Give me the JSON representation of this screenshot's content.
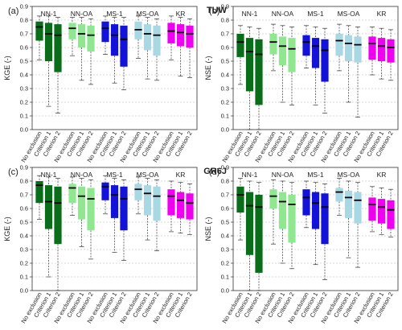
{
  "figure": {
    "models": [
      "TUW",
      "GR6J"
    ],
    "groups": [
      "NN-1",
      "NN-OA",
      "MS-1",
      "MS-OA",
      "KR"
    ],
    "criteria": [
      "No exclusion",
      "Criterion 1",
      "Criterion 2"
    ],
    "colors": {
      "NN-1": "#0a6d1a",
      "NN-OA": "#8fe88f",
      "MS-1": "#1212d8",
      "MS-OA": "#a8d8e4",
      "KR": "#f000f0"
    }
  },
  "chart_data": [
    {
      "type": "boxplot",
      "panel": "(a)",
      "model": "",
      "ylabel": "KGE (-)",
      "ylim": [
        0,
        0.9
      ],
      "yticks": [
        "0.0",
        "0.1",
        "0.2",
        "0.3",
        "0.4",
        "0.5",
        "0.6",
        "0.7",
        "0.8",
        "0.9"
      ],
      "grid": true,
      "boxes": [
        {
          "group": "NN-1",
          "criterion": "No exclusion",
          "whisker_low": 0.51,
          "q1": 0.65,
          "median": 0.75,
          "q3": 0.79,
          "whisker_high": 0.83
        },
        {
          "group": "NN-1",
          "criterion": "Criterion 1",
          "whisker_low": 0.17,
          "q1": 0.5,
          "median": 0.7,
          "q3": 0.78,
          "whisker_high": 0.83
        },
        {
          "group": "NN-1",
          "criterion": "Criterion 2",
          "whisker_low": 0.12,
          "q1": 0.42,
          "median": 0.69,
          "q3": 0.77,
          "whisker_high": 0.82
        },
        {
          "group": "NN-OA",
          "criterion": "No exclusion",
          "whisker_low": 0.54,
          "q1": 0.66,
          "median": 0.74,
          "q3": 0.78,
          "whisker_high": 0.82
        },
        {
          "group": "NN-OA",
          "criterion": "Criterion 1",
          "whisker_low": 0.36,
          "q1": 0.6,
          "median": 0.7,
          "q3": 0.77,
          "whisker_high": 0.82
        },
        {
          "group": "NN-OA",
          "criterion": "Criterion 2",
          "whisker_low": 0.33,
          "q1": 0.57,
          "median": 0.69,
          "q3": 0.76,
          "whisker_high": 0.81
        },
        {
          "group": "MS-1",
          "criterion": "No exclusion",
          "whisker_low": 0.55,
          "q1": 0.64,
          "median": 0.74,
          "q3": 0.79,
          "whisker_high": 0.83
        },
        {
          "group": "MS-1",
          "criterion": "Criterion 1",
          "whisker_low": 0.34,
          "q1": 0.54,
          "median": 0.69,
          "q3": 0.77,
          "whisker_high": 0.82
        },
        {
          "group": "MS-1",
          "criterion": "Criterion 2",
          "whisker_low": 0.29,
          "q1": 0.46,
          "median": 0.66,
          "q3": 0.76,
          "whisker_high": 0.82
        },
        {
          "group": "MS-OA",
          "criterion": "No exclusion",
          "whisker_low": 0.52,
          "q1": 0.66,
          "median": 0.73,
          "q3": 0.79,
          "whisker_high": 0.83
        },
        {
          "group": "MS-OA",
          "criterion": "Criterion 1",
          "whisker_low": 0.37,
          "q1": 0.58,
          "median": 0.7,
          "q3": 0.77,
          "whisker_high": 0.82
        },
        {
          "group": "MS-OA",
          "criterion": "Criterion 2",
          "whisker_low": 0.36,
          "q1": 0.54,
          "median": 0.69,
          "q3": 0.76,
          "whisker_high": 0.81
        },
        {
          "group": "KR",
          "criterion": "No exclusion",
          "whisker_low": 0.51,
          "q1": 0.63,
          "median": 0.72,
          "q3": 0.78,
          "whisker_high": 0.83
        },
        {
          "group": "KR",
          "criterion": "Criterion 1",
          "whisker_low": 0.39,
          "q1": 0.61,
          "median": 0.71,
          "q3": 0.77,
          "whisker_high": 0.82
        },
        {
          "group": "KR",
          "criterion": "Criterion 2",
          "whisker_low": 0.38,
          "q1": 0.6,
          "median": 0.7,
          "q3": 0.76,
          "whisker_high": 0.81
        }
      ]
    },
    {
      "type": "boxplot",
      "panel": "(b)",
      "model": "TUW",
      "ylabel": "NSE (-)",
      "ylim": [
        0,
        0.9
      ],
      "yticks": [
        "0.0",
        "0.1",
        "0.2",
        "0.3",
        "0.4",
        "0.5",
        "0.6",
        "0.7",
        "0.8",
        "0.9"
      ],
      "grid": true,
      "boxes": [
        {
          "group": "NN-1",
          "criterion": "No exclusion",
          "whisker_low": 0.33,
          "q1": 0.53,
          "median": 0.64,
          "q3": 0.7,
          "whisker_high": 0.76
        },
        {
          "group": "NN-1",
          "criterion": "Criterion 1",
          "whisker_low": 0.0,
          "q1": 0.28,
          "median": 0.57,
          "q3": 0.67,
          "whisker_high": 0.75
        },
        {
          "group": "NN-1",
          "criterion": "Criterion 2",
          "whisker_low": 0.0,
          "q1": 0.18,
          "median": 0.55,
          "q3": 0.66,
          "whisker_high": 0.74
        },
        {
          "group": "NN-OA",
          "criterion": "No exclusion",
          "whisker_low": 0.43,
          "q1": 0.55,
          "median": 0.64,
          "q3": 0.7,
          "whisker_high": 0.77
        },
        {
          "group": "NN-OA",
          "criterion": "Criterion 1",
          "whisker_low": 0.2,
          "q1": 0.47,
          "median": 0.61,
          "q3": 0.68,
          "whisker_high": 0.76
        },
        {
          "group": "NN-OA",
          "criterion": "Criterion 2",
          "whisker_low": 0.18,
          "q1": 0.42,
          "median": 0.59,
          "q3": 0.67,
          "whisker_high": 0.75
        },
        {
          "group": "MS-1",
          "criterion": "No exclusion",
          "whisker_low": 0.45,
          "q1": 0.54,
          "median": 0.64,
          "q3": 0.69,
          "whisker_high": 0.76
        },
        {
          "group": "MS-1",
          "criterion": "Criterion 1",
          "whisker_low": 0.18,
          "q1": 0.45,
          "median": 0.61,
          "q3": 0.67,
          "whisker_high": 0.75
        },
        {
          "group": "MS-1",
          "criterion": "Criterion 2",
          "whisker_low": 0.12,
          "q1": 0.35,
          "median": 0.58,
          "q3": 0.66,
          "whisker_high": 0.74
        },
        {
          "group": "MS-OA",
          "criterion": "No exclusion",
          "whisker_low": 0.43,
          "q1": 0.54,
          "median": 0.65,
          "q3": 0.7,
          "whisker_high": 0.77
        },
        {
          "group": "MS-OA",
          "criterion": "Criterion 1",
          "whisker_low": 0.2,
          "q1": 0.5,
          "median": 0.63,
          "q3": 0.69,
          "whisker_high": 0.76
        },
        {
          "group": "MS-OA",
          "criterion": "Criterion 2",
          "whisker_low": 0.09,
          "q1": 0.49,
          "median": 0.62,
          "q3": 0.68,
          "whisker_high": 0.75
        },
        {
          "group": "KR",
          "criterion": "No exclusion",
          "whisker_low": 0.4,
          "q1": 0.51,
          "median": 0.63,
          "q3": 0.68,
          "whisker_high": 0.75
        },
        {
          "group": "KR",
          "criterion": "Criterion 1",
          "whisker_low": 0.37,
          "q1": 0.5,
          "median": 0.61,
          "q3": 0.67,
          "whisker_high": 0.74
        },
        {
          "group": "KR",
          "criterion": "Criterion 2",
          "whisker_low": 0.36,
          "q1": 0.49,
          "median": 0.6,
          "q3": 0.66,
          "whisker_high": 0.73
        }
      ]
    },
    {
      "type": "boxplot",
      "panel": "(c)",
      "model": "",
      "ylabel": "KGE (-)",
      "ylim": [
        0,
        0.9
      ],
      "yticks": [
        "0.0",
        "0.1",
        "0.2",
        "0.3",
        "0.4",
        "0.5",
        "0.6",
        "0.7",
        "0.8",
        "0.9"
      ],
      "grid": true,
      "boxes": [
        {
          "group": "NN-1",
          "criterion": "No exclusion",
          "whisker_low": 0.52,
          "q1": 0.64,
          "median": 0.77,
          "q3": 0.8,
          "whisker_high": 0.84
        },
        {
          "group": "NN-1",
          "criterion": "Criterion 1",
          "whisker_low": 0.1,
          "q1": 0.45,
          "median": 0.65,
          "q3": 0.77,
          "whisker_high": 0.83
        },
        {
          "group": "NN-1",
          "criterion": "Criterion 2",
          "whisker_low": 0.0,
          "q1": 0.34,
          "median": 0.64,
          "q3": 0.76,
          "whisker_high": 0.82
        },
        {
          "group": "NN-OA",
          "criterion": "No exclusion",
          "whisker_low": 0.55,
          "q1": 0.64,
          "median": 0.75,
          "q3": 0.78,
          "whisker_high": 0.83
        },
        {
          "group": "NN-OA",
          "criterion": "Criterion 1",
          "whisker_low": 0.32,
          "q1": 0.52,
          "median": 0.69,
          "q3": 0.76,
          "whisker_high": 0.82
        },
        {
          "group": "NN-OA",
          "criterion": "Criterion 2",
          "whisker_low": 0.23,
          "q1": 0.44,
          "median": 0.67,
          "q3": 0.75,
          "whisker_high": 0.81
        },
        {
          "group": "MS-1",
          "criterion": "No exclusion",
          "whisker_low": 0.56,
          "q1": 0.66,
          "median": 0.76,
          "q3": 0.79,
          "whisker_high": 0.84
        },
        {
          "group": "MS-1",
          "criterion": "Criterion 1",
          "whisker_low": 0.28,
          "q1": 0.53,
          "median": 0.7,
          "q3": 0.77,
          "whisker_high": 0.82
        },
        {
          "group": "MS-1",
          "criterion": "Criterion 2",
          "whisker_low": 0.22,
          "q1": 0.44,
          "median": 0.67,
          "q3": 0.76,
          "whisker_high": 0.81
        },
        {
          "group": "MS-OA",
          "criterion": "No exclusion",
          "whisker_low": 0.56,
          "q1": 0.66,
          "median": 0.74,
          "q3": 0.78,
          "whisker_high": 0.83
        },
        {
          "group": "MS-OA",
          "criterion": "Criterion 1",
          "whisker_low": 0.37,
          "q1": 0.55,
          "median": 0.71,
          "q3": 0.77,
          "whisker_high": 0.82
        },
        {
          "group": "MS-OA",
          "criterion": "Criterion 2",
          "whisker_low": 0.29,
          "q1": 0.51,
          "median": 0.69,
          "q3": 0.76,
          "whisker_high": 0.81
        },
        {
          "group": "KR",
          "criterion": "No exclusion",
          "whisker_low": 0.43,
          "q1": 0.55,
          "median": 0.69,
          "q3": 0.74,
          "whisker_high": 0.8
        },
        {
          "group": "KR",
          "criterion": "Criterion 1",
          "whisker_low": 0.42,
          "q1": 0.53,
          "median": 0.66,
          "q3": 0.72,
          "whisker_high": 0.79
        },
        {
          "group": "KR",
          "criterion": "Criterion 2",
          "whisker_low": 0.41,
          "q1": 0.52,
          "median": 0.64,
          "q3": 0.71,
          "whisker_high": 0.78
        }
      ]
    },
    {
      "type": "boxplot",
      "panel": "(d)",
      "model": "GR6J",
      "ylabel": "NSE (-)",
      "ylim": [
        0,
        0.9
      ],
      "yticks": [
        "0.0",
        "0.1",
        "0.2",
        "0.3",
        "0.4",
        "0.5",
        "0.6",
        "0.7",
        "0.8",
        "0.9"
      ],
      "grid": true,
      "boxes": [
        {
          "group": "NN-1",
          "criterion": "No exclusion",
          "whisker_low": 0.37,
          "q1": 0.57,
          "median": 0.7,
          "q3": 0.76,
          "whisker_high": 0.82
        },
        {
          "group": "NN-1",
          "criterion": "Criterion 1",
          "whisker_low": 0.0,
          "q1": 0.26,
          "median": 0.62,
          "q3": 0.72,
          "whisker_high": 0.8
        },
        {
          "group": "NN-1",
          "criterion": "Criterion 2",
          "whisker_low": 0.0,
          "q1": 0.13,
          "median": 0.61,
          "q3": 0.7,
          "whisker_high": 0.79
        },
        {
          "group": "NN-OA",
          "criterion": "No exclusion",
          "whisker_low": 0.34,
          "q1": 0.6,
          "median": 0.69,
          "q3": 0.74,
          "whisker_high": 0.81
        },
        {
          "group": "NN-OA",
          "criterion": "Criterion 1",
          "whisker_low": 0.2,
          "q1": 0.45,
          "median": 0.65,
          "q3": 0.72,
          "whisker_high": 0.8
        },
        {
          "group": "NN-OA",
          "criterion": "Criterion 2",
          "whisker_low": 0.16,
          "q1": 0.35,
          "median": 0.63,
          "q3": 0.7,
          "whisker_high": 0.79
        },
        {
          "group": "MS-1",
          "criterion": "No exclusion",
          "whisker_low": 0.46,
          "q1": 0.55,
          "median": 0.68,
          "q3": 0.74,
          "whisker_high": 0.8
        },
        {
          "group": "MS-1",
          "criterion": "Criterion 1",
          "whisker_low": 0.19,
          "q1": 0.45,
          "median": 0.64,
          "q3": 0.72,
          "whisker_high": 0.79
        },
        {
          "group": "MS-1",
          "criterion": "Criterion 2",
          "whisker_low": 0.08,
          "q1": 0.34,
          "median": 0.61,
          "q3": 0.71,
          "whisker_high": 0.78
        },
        {
          "group": "MS-OA",
          "criterion": "No exclusion",
          "whisker_low": 0.55,
          "q1": 0.65,
          "median": 0.72,
          "q3": 0.75,
          "whisker_high": 0.82
        },
        {
          "group": "MS-OA",
          "criterion": "Criterion 1",
          "whisker_low": 0.24,
          "q1": 0.53,
          "median": 0.68,
          "q3": 0.73,
          "whisker_high": 0.8
        },
        {
          "group": "MS-OA",
          "criterion": "Criterion 2",
          "whisker_low": 0.17,
          "q1": 0.49,
          "median": 0.66,
          "q3": 0.72,
          "whisker_high": 0.79
        },
        {
          "group": "KR",
          "criterion": "No exclusion",
          "whisker_low": 0.43,
          "q1": 0.51,
          "median": 0.63,
          "q3": 0.68,
          "whisker_high": 0.76
        },
        {
          "group": "KR",
          "criterion": "Criterion 1",
          "whisker_low": 0.41,
          "q1": 0.49,
          "median": 0.61,
          "q3": 0.67,
          "whisker_high": 0.75
        },
        {
          "group": "KR",
          "criterion": "Criterion 2",
          "whisker_low": 0.39,
          "q1": 0.45,
          "median": 0.59,
          "q3": 0.66,
          "whisker_high": 0.74
        }
      ]
    }
  ]
}
